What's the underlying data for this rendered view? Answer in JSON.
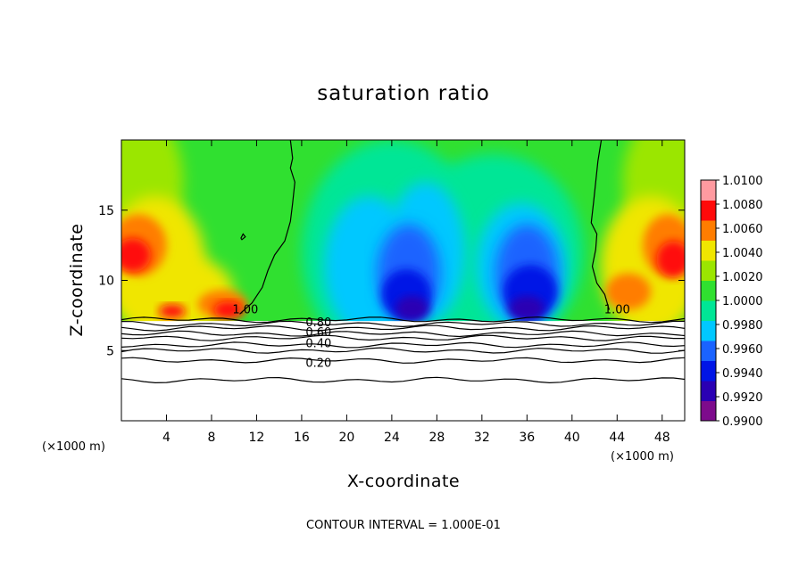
{
  "chart_data": {
    "type": "heatmap",
    "title": "saturation ratio",
    "xlabel": "X-coordinate",
    "ylabel": "Z-coordinate",
    "x_unit_note_left": "(×1000 m)",
    "x_unit_note_right": "(×1000 m)",
    "footer": "CONTOUR INTERVAL = 1.000E-01",
    "xlim": [
      0,
      50
    ],
    "ylim": [
      0,
      20
    ],
    "x_ticks": [
      4,
      8,
      12,
      16,
      20,
      24,
      28,
      32,
      36,
      40,
      44,
      48
    ],
    "x_tick_labels": [
      "4",
      "8",
      "12",
      "16",
      "20",
      "24",
      "28",
      "32",
      "36",
      "40",
      "44",
      "48"
    ],
    "y_ticks": [
      5,
      10,
      15
    ],
    "y_tick_labels": [
      "5",
      "10",
      "15"
    ],
    "colorbar": {
      "min": 0.99,
      "max": 1.01,
      "tick_values": [
        1.01,
        1.008,
        1.006,
        1.004,
        1.002,
        1.0,
        0.998,
        0.996,
        0.994,
        0.992,
        0.99
      ],
      "tick_labels": [
        "1.0100",
        "1.0080",
        "1.0060",
        "1.0040",
        "1.0020",
        "1.0000",
        "0.9980",
        "0.9960",
        "0.9940",
        "0.9920",
        "0.9900"
      ],
      "colors": [
        "#7d0b8c",
        "#2a00b3",
        "#0015e6",
        "#1a63ff",
        "#00c8ff",
        "#00e696",
        "#30e030",
        "#9be600",
        "#f0e600",
        "#ff7d00",
        "#ff0a0a",
        "#ff9aa0"
      ]
    },
    "contour_labels": [
      {
        "text": "1.00",
        "x": 11.0,
        "z": 7.9
      },
      {
        "text": "1.00",
        "x": 44.0,
        "z": 7.9
      },
      {
        "text": "0.80",
        "x": 17.5,
        "z": 7.0
      },
      {
        "text": "0.60",
        "x": 17.5,
        "z": 6.3
      },
      {
        "text": "0.40",
        "x": 17.5,
        "z": 5.5
      },
      {
        "text": "0.20",
        "x": 17.5,
        "z": 4.1
      }
    ],
    "contour_levels_below_cloud": [
      0.9,
      0.8,
      0.7,
      0.6,
      0.5,
      0.4,
      0.3,
      0.2,
      0.1
    ],
    "grid": false
  }
}
